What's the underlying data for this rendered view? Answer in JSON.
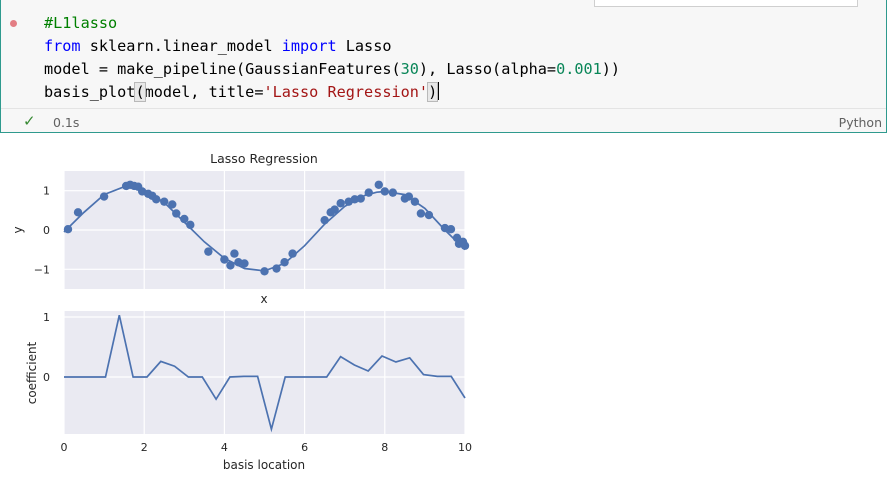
{
  "cell": {
    "code_lines": [
      "#L1lasso",
      "from sklearn.linear_model import Lasso",
      "model = make_pipeline(GaussianFeatures(30), Lasso(alpha=0.001))",
      "basis_plot(model, title='Lasso Regression')"
    ],
    "tokens": {
      "comment": "#L1lasso",
      "kw_from": "from",
      "module": " sklearn.linear_model ",
      "kw_import": "import",
      "cls": " Lasso",
      "l3_a": "model = make_pipeline(GaussianFeatures(",
      "n30": "30",
      "l3_b": "), Lasso(alpha=",
      "n001": "0.001",
      "l3_c": "))",
      "l4_a": "basis_plot",
      "paren_open": "(",
      "l4_b": "model, title=",
      "str": "'Lasso Regression'",
      "paren_close": ")"
    },
    "exec_time": "0.1s",
    "language": "Python",
    "status_icon": "check-icon",
    "colors": {
      "border": "#2f9a8e",
      "check": "#388a34",
      "run_dot": "#e37e84"
    }
  },
  "chart_data": [
    {
      "type": "scatter+line",
      "title": "Lasso Regression",
      "xlabel": "x",
      "ylabel": "y",
      "xlim": [
        0,
        10
      ],
      "ylim": [
        -1.5,
        1.5
      ],
      "yticks": [
        -1,
        0,
        1
      ],
      "grid": true,
      "series": [
        {
          "kind": "points",
          "x": [
            0.1,
            0.35,
            1.0,
            1.55,
            1.65,
            1.75,
            1.85,
            1.95,
            2.1,
            2.2,
            2.3,
            2.5,
            2.7,
            2.8,
            3.0,
            3.15,
            3.6,
            4.0,
            4.15,
            4.25,
            4.35,
            4.5,
            5.0,
            5.3,
            5.5,
            5.7,
            6.5,
            6.65,
            6.75,
            6.9,
            7.1,
            7.25,
            7.4,
            7.6,
            7.85,
            8.0,
            8.2,
            8.5,
            8.6,
            8.75,
            8.9,
            9.1,
            9.5,
            9.65,
            9.8,
            9.85,
            9.95,
            10.0
          ],
          "y": [
            0.02,
            0.45,
            0.85,
            1.12,
            1.15,
            1.12,
            1.1,
            0.98,
            0.92,
            0.87,
            0.78,
            0.72,
            0.65,
            0.42,
            0.28,
            0.13,
            -0.55,
            -0.75,
            -0.9,
            -0.6,
            -0.82,
            -0.85,
            -1.05,
            -0.98,
            -0.82,
            -0.6,
            0.25,
            0.45,
            0.52,
            0.68,
            0.72,
            0.78,
            0.8,
            0.95,
            1.15,
            0.98,
            0.95,
            0.8,
            0.85,
            0.72,
            0.42,
            0.38,
            0.05,
            0.02,
            -0.2,
            -0.35,
            -0.3,
            -0.4
          ]
        },
        {
          "kind": "fit",
          "x": [
            0,
            0.5,
            1,
            1.5,
            1.7,
            2,
            2.5,
            3,
            3.5,
            4,
            4.5,
            5,
            5.5,
            6,
            6.5,
            7,
            7.5,
            7.8,
            8,
            8.5,
            9,
            9.5,
            10
          ],
          "y": [
            -0.05,
            0.45,
            0.9,
            1.1,
            1.12,
            1.02,
            0.7,
            0.2,
            -0.3,
            -0.72,
            -0.98,
            -1.04,
            -0.85,
            -0.4,
            0.15,
            0.6,
            0.88,
            0.96,
            0.98,
            0.9,
            0.55,
            0.0,
            -0.5
          ]
        }
      ]
    },
    {
      "type": "line",
      "xlabel": "basis location",
      "ylabel": "coefficient",
      "xlim": [
        0,
        10
      ],
      "ylim": [
        -0.95,
        1.1
      ],
      "xticks": [
        0,
        2,
        4,
        6,
        8,
        10
      ],
      "yticks": [
        0,
        1
      ],
      "grid": true,
      "x": [
        0,
        0.345,
        0.69,
        1.034,
        1.379,
        1.724,
        2.069,
        2.414,
        2.759,
        3.103,
        3.448,
        3.793,
        4.138,
        4.483,
        4.828,
        5.172,
        5.517,
        5.862,
        6.207,
        6.552,
        6.897,
        7.241,
        7.586,
        7.931,
        8.276,
        8.621,
        8.966,
        9.31,
        9.655,
        10
      ],
      "y": [
        0,
        0,
        0,
        0,
        1.03,
        0,
        0,
        0.26,
        0.18,
        0,
        0,
        -0.37,
        0,
        0.01,
        0.01,
        -0.87,
        0,
        0,
        0,
        0,
        0.34,
        0.2,
        0.1,
        0.35,
        0.25,
        0.32,
        0.04,
        0.01,
        0.01,
        -0.35
      ]
    }
  ]
}
